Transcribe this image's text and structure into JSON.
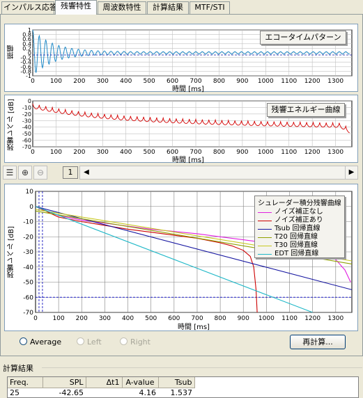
{
  "tabs": [
    "インパルス応答",
    "残響特性",
    "周波数特性",
    "計算結果",
    "MTF/STI"
  ],
  "active_tab": 1,
  "graph1": {
    "ylabel": "振幅",
    "xlabel": "時間 [ms]",
    "yticks": [
      "1",
      "0.8",
      "0.6",
      "0.4",
      "0.2",
      "0",
      "-0.2",
      "-0.4",
      "-0.6",
      "-0.8",
      "-1"
    ],
    "xticks": [
      "0",
      "100",
      "200",
      "300",
      "400",
      "500",
      "600",
      "700",
      "800",
      "900",
      "1000",
      "1100",
      "1200",
      "1300"
    ],
    "label": "エコータイムパターン",
    "color": "#1f8ac8"
  },
  "graph2": {
    "ylabel": "残響レベル [dB]",
    "xlabel": "時間 [ms]",
    "yticks": [
      "0",
      "-10",
      "-20",
      "-30",
      "-40",
      "-50",
      "-60",
      "-70"
    ],
    "xticks": [
      "0",
      "100",
      "200",
      "300",
      "400",
      "500",
      "600",
      "700",
      "800",
      "900",
      "1000",
      "1100",
      "1200",
      "1300"
    ],
    "label": "残響エネルギー曲線",
    "color": "#d40000"
  },
  "toolbar": {
    "page": "1",
    "icons": [
      "graph-select-icon",
      "zoom-in-icon",
      "zoom-out-icon"
    ]
  },
  "chart_data": {
    "type": "line",
    "ylabel": "残響レベル [dB]",
    "xlabel": "時間 [ms]",
    "xlim": [
      0,
      1370
    ],
    "ylim": [
      -70,
      10
    ],
    "yticks": [
      "10",
      "0",
      "-10",
      "-20",
      "-30",
      "-40",
      "-50",
      "-60",
      "-70"
    ],
    "xticks": [
      "0",
      "100",
      "200",
      "300",
      "400",
      "500",
      "600",
      "700",
      "800",
      "900",
      "1000",
      "1100",
      "1200",
      "1300"
    ],
    "legend_title": "シュレーダー積分残響曲線",
    "legend_position": "top-right",
    "series": [
      {
        "name": "ノイズ補正なし",
        "color": "#e020e0",
        "x": [
          0,
          100,
          200,
          300,
          400,
          500,
          600,
          700,
          800,
          900,
          1000,
          1100,
          1200,
          1300,
          1340,
          1365
        ],
        "y": [
          0,
          -6,
          -9,
          -11,
          -13,
          -15,
          -16.5,
          -18,
          -20,
          -22,
          -24,
          -26,
          -29,
          -35,
          -42,
          -50
        ]
      },
      {
        "name": "ノイズ補正あり",
        "color": "#cc0000",
        "x": [
          0,
          100,
          200,
          300,
          400,
          500,
          600,
          700,
          800,
          850,
          900,
          930,
          945,
          955,
          960
        ],
        "y": [
          0,
          -7,
          -10,
          -12.5,
          -15,
          -17,
          -19,
          -21,
          -24,
          -26,
          -29,
          -33,
          -40,
          -55,
          -70
        ]
      },
      {
        "name": "Tsub 回帰直線",
        "color": "#1515a0",
        "x": [
          0,
          1370
        ],
        "y": [
          0,
          -55
        ]
      },
      {
        "name": "T20 回帰直線",
        "color": "#90a000",
        "x": [
          0,
          1370
        ],
        "y": [
          -3,
          -38
        ]
      },
      {
        "name": "T30 回帰直線",
        "color": "#c8c820",
        "x": [
          0,
          1370
        ],
        "y": [
          -2,
          -36
        ]
      },
      {
        "name": "EDT 回帰直線",
        "color": "#20b8c8",
        "x": [
          0,
          1200
        ],
        "y": [
          0,
          -70
        ]
      }
    ],
    "ref_hlines": [
      -60
    ],
    "ref_vlines": [
      15,
      30
    ]
  },
  "radios": [
    {
      "label": "Average",
      "enabled": true
    },
    {
      "label": "Left",
      "enabled": false
    },
    {
      "label": "Right",
      "enabled": false
    }
  ],
  "recalc_button": "再計算...",
  "results": {
    "title": "計算結果",
    "headers": [
      "Freq.",
      "SPL",
      "Δt1",
      "A-value",
      "Tsub"
    ],
    "row": [
      "25",
      "-42.65",
      "",
      "4.16",
      "1.537"
    ]
  }
}
